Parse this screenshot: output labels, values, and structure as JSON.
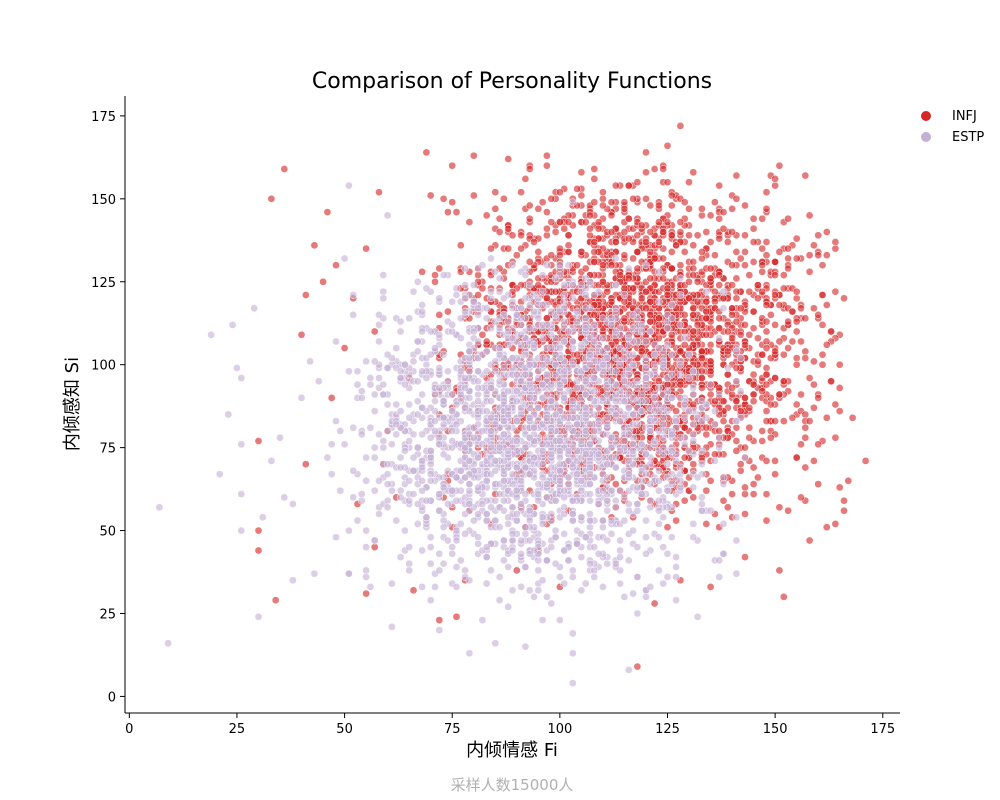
{
  "chart_data": {
    "type": "scatter",
    "title": "Comparison of Personality Functions",
    "xlabel": "内倾情感 Fi",
    "ylabel": "内倾感知 Si",
    "footnote": "采样人数15000人",
    "xlim": [
      -1,
      179
    ],
    "ylim": [
      -5,
      181
    ],
    "xticks": [
      0,
      25,
      50,
      75,
      100,
      125,
      150,
      175
    ],
    "yticks": [
      0,
      25,
      50,
      75,
      100,
      125,
      150,
      175
    ],
    "grid": false,
    "legend_position": "top-right",
    "series": [
      {
        "name": "INFJ",
        "color": "#d62728",
        "distribution": {
          "mean": [
            118,
            105
          ],
          "sd": [
            20,
            23
          ],
          "count": 2600
        },
        "points": [
          [
            128,
            172
          ],
          [
            69,
            164
          ],
          [
            80,
            163
          ],
          [
            125,
            166
          ],
          [
            36,
            159
          ],
          [
            151,
            160
          ],
          [
            33,
            150
          ],
          [
            150,
            156
          ],
          [
            58,
            152
          ],
          [
            70,
            151
          ],
          [
            73,
            150
          ],
          [
            75,
            160
          ],
          [
            88,
            162
          ],
          [
            97,
            163
          ],
          [
            110,
            148
          ],
          [
            116,
            154
          ],
          [
            120,
            164
          ],
          [
            125,
            155
          ],
          [
            141,
            150
          ],
          [
            158,
            145
          ],
          [
            160,
            133
          ],
          [
            166,
            120
          ],
          [
            162,
            106
          ],
          [
            163,
            95
          ],
          [
            168,
            84
          ],
          [
            171,
            71
          ],
          [
            167,
            65
          ],
          [
            166,
            56
          ],
          [
            162,
            51
          ],
          [
            158,
            47
          ],
          [
            152,
            30
          ],
          [
            151,
            38
          ],
          [
            143,
            42
          ],
          [
            135,
            33
          ],
          [
            128,
            35
          ],
          [
            122,
            28
          ],
          [
            118,
            9
          ],
          [
            100,
            33
          ],
          [
            95,
            44
          ],
          [
            90,
            38
          ],
          [
            78,
            35
          ],
          [
            72,
            23
          ],
          [
            76,
            24
          ],
          [
            66,
            32
          ],
          [
            55,
            31
          ],
          [
            57,
            45
          ],
          [
            34,
            29
          ],
          [
            30,
            44
          ],
          [
            30,
            50
          ],
          [
            30,
            77
          ],
          [
            41,
            70
          ],
          [
            41,
            121
          ],
          [
            40,
            109
          ],
          [
            43,
            136
          ],
          [
            46,
            146
          ],
          [
            50,
            105
          ],
          [
            47,
            90
          ],
          [
            55,
            135
          ],
          [
            57,
            110
          ],
          [
            60,
            80
          ],
          [
            62,
            60
          ],
          [
            65,
            96
          ],
          [
            68,
            128
          ],
          [
            45,
            125
          ],
          [
            52,
            120
          ],
          [
            160,
            76
          ],
          [
            160,
            64
          ],
          [
            155,
            88
          ],
          [
            157,
            102
          ],
          [
            152,
            95
          ],
          [
            148,
            118
          ],
          [
            145,
            137
          ],
          [
            138,
            146
          ],
          [
            133,
            147
          ],
          [
            48,
            130
          ],
          [
            53,
            58
          ],
          [
            59,
            70
          ]
        ]
      },
      {
        "name": "ESTP",
        "color": "#c5b0d5",
        "distribution": {
          "mean": [
            95,
            80
          ],
          "sd": [
            20,
            22
          ],
          "count": 2200
        },
        "points": [
          [
            7,
            57
          ],
          [
            9,
            16
          ],
          [
            19,
            109
          ],
          [
            24,
            112
          ],
          [
            25,
            99
          ],
          [
            26,
            96
          ],
          [
            23,
            85
          ],
          [
            21,
            67
          ],
          [
            26,
            76
          ],
          [
            26,
            61
          ],
          [
            26,
            50
          ],
          [
            30,
            24
          ],
          [
            29,
            117
          ],
          [
            31,
            54
          ],
          [
            33,
            71
          ],
          [
            35,
            78
          ],
          [
            36,
            60
          ],
          [
            38,
            58
          ],
          [
            38,
            35
          ],
          [
            42,
            101
          ],
          [
            43,
            37
          ],
          [
            47,
            67
          ],
          [
            44,
            95
          ],
          [
            51,
            154
          ],
          [
            50,
            132
          ],
          [
            60,
            145
          ],
          [
            52,
            60
          ],
          [
            55,
            38
          ],
          [
            56,
            33
          ],
          [
            61,
            21
          ],
          [
            72,
            20
          ],
          [
            79,
            13
          ],
          [
            85,
            16
          ],
          [
            92,
            15
          ],
          [
            96,
            23
          ],
          [
            103,
            4
          ],
          [
            103,
            13
          ],
          [
            103,
            19
          ],
          [
            100,
            23
          ],
          [
            116,
            8
          ],
          [
            118,
            25
          ],
          [
            127,
            29
          ],
          [
            132,
            24
          ],
          [
            141,
            37
          ],
          [
            133,
            60
          ],
          [
            137,
            75
          ],
          [
            103,
            149
          ],
          [
            65,
            45
          ],
          [
            70,
            40
          ],
          [
            82,
            23
          ],
          [
            88,
            27
          ],
          [
            40,
            90
          ],
          [
            46,
            72
          ],
          [
            58,
            115
          ]
        ]
      }
    ]
  }
}
